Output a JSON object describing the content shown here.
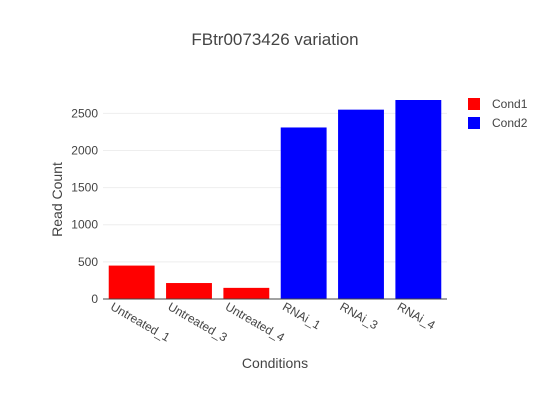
{
  "chart_data": {
    "type": "bar",
    "title": "FBtr0073426 variation",
    "xlabel": "Conditions",
    "ylabel": "Read Count",
    "categories": [
      "Untreated_1",
      "Untreated_3",
      "Untreated_4",
      "RNAi_1",
      "RNAi_3",
      "RNAi_4"
    ],
    "series": [
      {
        "name": "Cond1",
        "color": "#ff0000",
        "values": [
          450,
          215,
          150,
          null,
          null,
          null
        ]
      },
      {
        "name": "Cond2",
        "color": "#0000ff",
        "values": [
          null,
          null,
          null,
          2310,
          2550,
          2680
        ]
      }
    ],
    "ylim": [
      0,
      2680
    ],
    "yticks": [
      0,
      500,
      1000,
      1500,
      2000,
      2500
    ],
    "yticklabels": [
      "0",
      "500",
      "1000",
      "1500",
      "2000",
      "2500"
    ],
    "grid": true,
    "legend_position": "top-right"
  }
}
